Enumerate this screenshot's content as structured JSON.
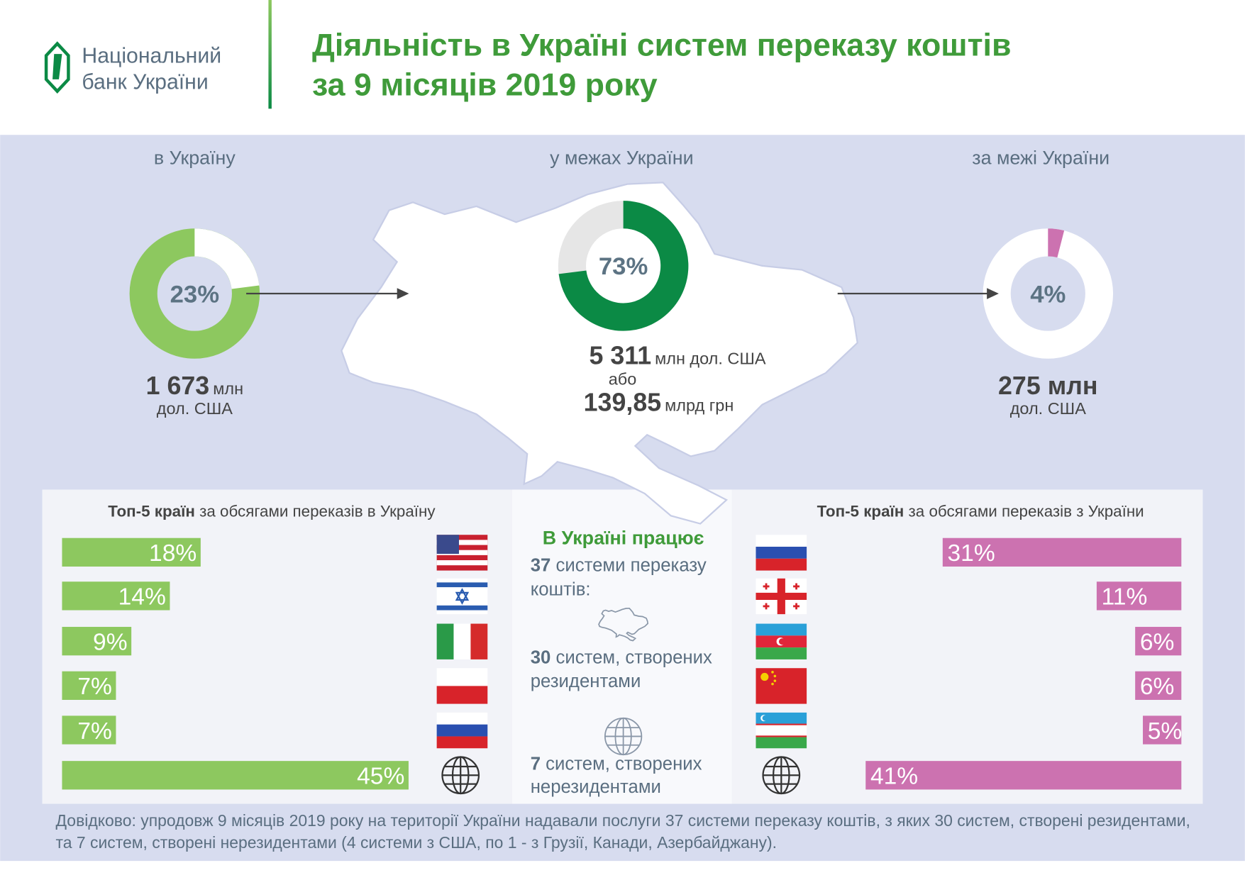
{
  "header": {
    "logo": [
      "Національний",
      "банк України"
    ],
    "title": [
      "Діяльність в Україні систем переказу коштів",
      "за 9 місяців 2019 року"
    ]
  },
  "flows": [
    {
      "label": "в Україну",
      "share": 23,
      "share_label": "23%",
      "ring_color": "#8dc85f",
      "arc_color": "#ffffff",
      "amount": "1 673",
      "amount_unit": "млн",
      "amount_note": "дол. США"
    },
    {
      "label": "у межах України",
      "share": 73,
      "share_label": "73%",
      "ring_color": "#e6e6e6",
      "arc_color": "#0b8a45",
      "amount": "5 311",
      "amount_unit": "млн дол. США",
      "or": "або",
      "amount_uah": "139,85",
      "amount_uah_unit": "млрд грн"
    },
    {
      "label": "за межі України",
      "share": 4,
      "share_label": "4%",
      "ring_color": "#ffffff",
      "arc_color": "#cc72b0",
      "amount": "275 млн",
      "amount_note": "дол. США"
    }
  ],
  "top_in": {
    "title_bold": "Топ-5 країн",
    "title_rest": "за обсягами переказів в Україну",
    "values": [
      18,
      14,
      9,
      7,
      7,
      45
    ],
    "value_labels": [
      "18%",
      "14%",
      "9%",
      "7%",
      "7%",
      "45%"
    ],
    "color": "#8dc85f"
  },
  "top_out": {
    "title_bold": "Топ-5 країн",
    "title_rest": "за обсягами переказів з України",
    "values": [
      31,
      11,
      6,
      6,
      5,
      41
    ],
    "value_labels": [
      "31%",
      "11%",
      "6%",
      "6%",
      "5%",
      "41%"
    ],
    "color": "#cc72b0"
  },
  "systems": {
    "title": "В Україні працює",
    "items": [
      {
        "count": 37,
        "text": "системи переказу коштів:"
      },
      {
        "count": 30,
        "text": "систем, створених резидентами"
      },
      {
        "count": 7,
        "text": "систем, створених нерезидентами"
      }
    ]
  },
  "note": "Довідково: упродовж 9 місяців 2019 року на території України надавали послуги 37 системи переказу коштів, з яких 30 систем, створені резидентами, та 7 систем, створені нерезидентами (4 системи з США, по 1 - з Грузії, Канади, Азербайджану)."
}
